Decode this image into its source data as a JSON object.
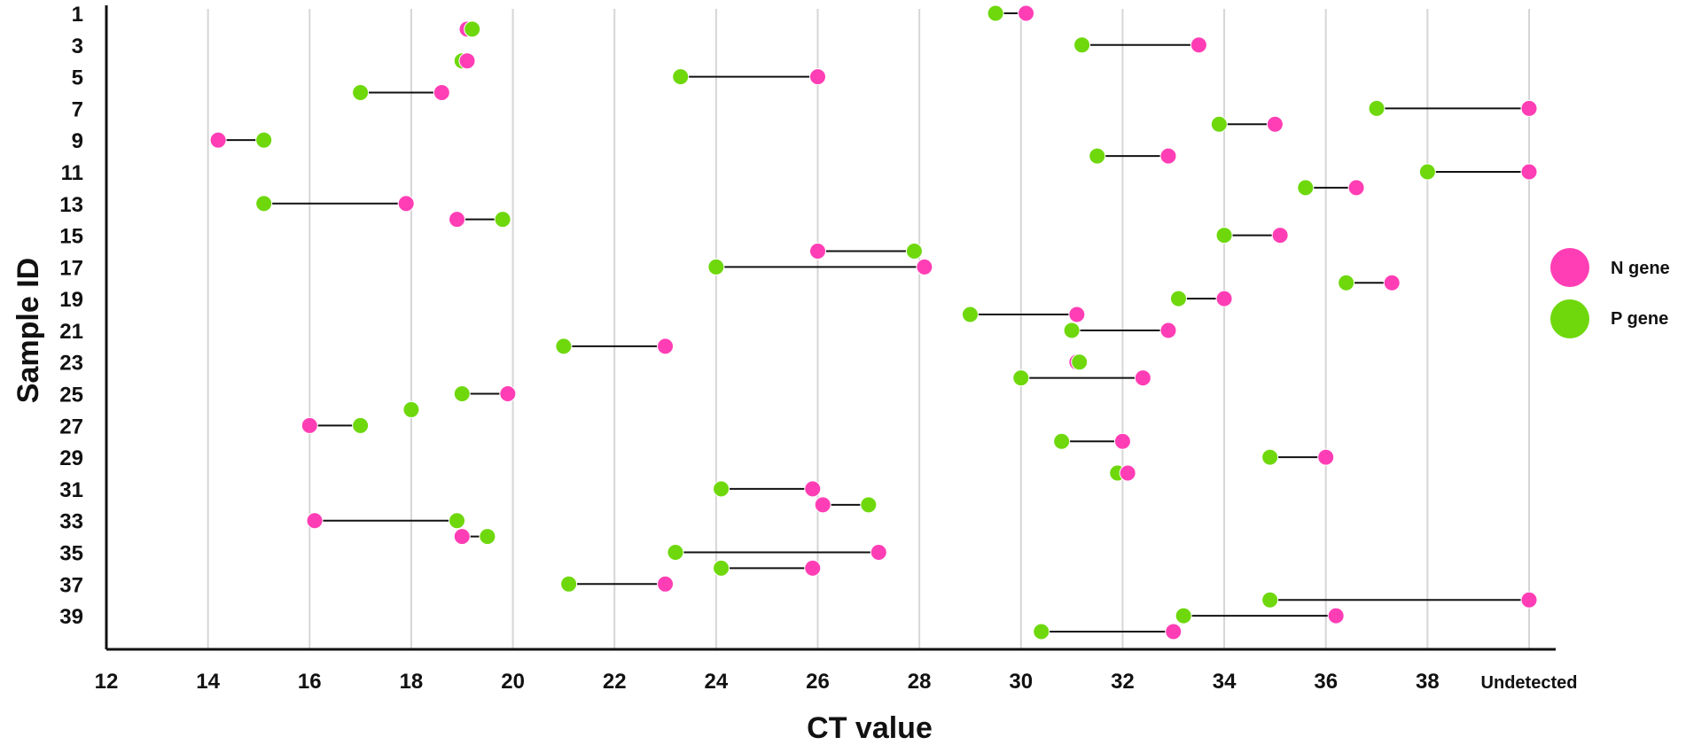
{
  "chart_data": {
    "type": "dumbbell",
    "title": "",
    "xlabel": "CT value",
    "ylabel": "Sample ID",
    "xlim": [
      12,
      40
    ],
    "x_ticks": [
      12,
      14,
      16,
      18,
      20,
      22,
      24,
      26,
      28,
      30,
      32,
      34,
      36,
      38
    ],
    "x_tick_labels": [
      "12",
      "14",
      "16",
      "18",
      "20",
      "22",
      "24",
      "26",
      "28",
      "30",
      "32",
      "34",
      "36",
      "38"
    ],
    "undetected_label": "Undetected",
    "undetected_value": 40,
    "y_ticks": [
      1,
      3,
      5,
      7,
      9,
      11,
      13,
      15,
      17,
      19,
      21,
      23,
      25,
      27,
      29,
      31,
      33,
      35,
      37,
      39
    ],
    "y_tick_labels": [
      "1",
      "3",
      "5",
      "7",
      "9",
      "11",
      "13",
      "15",
      "17",
      "19",
      "21",
      "23",
      "25",
      "27",
      "29",
      "31",
      "33",
      "35",
      "37",
      "39"
    ],
    "ylim": [
      0.4,
      40.6
    ],
    "grid": "vertical",
    "legend_position": "right",
    "series": [
      {
        "name": "N gene",
        "color": "#ff3eb5"
      },
      {
        "name": "P gene",
        "color": "#6ed80c"
      }
    ],
    "samples": [
      {
        "id": 1,
        "n": 30.1,
        "p": 29.5
      },
      {
        "id": 2,
        "n": 19.1,
        "p": 19.2
      },
      {
        "id": 3,
        "n": 33.5,
        "p": 31.2
      },
      {
        "id": 4,
        "n": 19.1,
        "p": 19.0
      },
      {
        "id": 5,
        "n": 26.0,
        "p": 23.3
      },
      {
        "id": 6,
        "n": 18.6,
        "p": 17.0
      },
      {
        "id": 7,
        "n": 40,
        "p": 37.0
      },
      {
        "id": 8,
        "n": 35.0,
        "p": 33.9
      },
      {
        "id": 9,
        "n": 14.2,
        "p": 15.1
      },
      {
        "id": 10,
        "n": 32.9,
        "p": 31.5
      },
      {
        "id": 11,
        "n": 40,
        "p": 38.0
      },
      {
        "id": 12,
        "n": 36.6,
        "p": 35.6
      },
      {
        "id": 13,
        "n": 17.9,
        "p": 15.1
      },
      {
        "id": 14,
        "n": 18.9,
        "p": 19.8
      },
      {
        "id": 15,
        "n": 35.1,
        "p": 34.0
      },
      {
        "id": 16,
        "n": 26.0,
        "p": 27.9
      },
      {
        "id": 17,
        "n": 28.1,
        "p": 24.0
      },
      {
        "id": 18,
        "n": 37.3,
        "p": 36.4
      },
      {
        "id": 19,
        "n": 34.0,
        "p": 33.1
      },
      {
        "id": 20,
        "n": 31.1,
        "p": 29.0
      },
      {
        "id": 21,
        "n": 32.9,
        "p": 31.0
      },
      {
        "id": 22,
        "n": 23.0,
        "p": 21.0
      },
      {
        "id": 23,
        "n": 31.1,
        "p": 31.15
      },
      {
        "id": 24,
        "n": 32.4,
        "p": 30.0
      },
      {
        "id": 25,
        "n": 19.9,
        "p": 19.0
      },
      {
        "id": 26,
        "n": 18.0,
        "p": 18.0
      },
      {
        "id": 27,
        "n": 16.0,
        "p": 17.0
      },
      {
        "id": 28,
        "n": 32.0,
        "p": 30.8
      },
      {
        "id": 29,
        "n": 36.0,
        "p": 34.9
      },
      {
        "id": 30,
        "n": 32.1,
        "p": 31.9
      },
      {
        "id": 31,
        "n": 25.9,
        "p": 24.1
      },
      {
        "id": 32,
        "n": 26.1,
        "p": 27.0
      },
      {
        "id": 33,
        "n": 16.1,
        "p": 18.9
      },
      {
        "id": 34,
        "n": 19.0,
        "p": 19.5
      },
      {
        "id": 35,
        "n": 27.2,
        "p": 23.2
      },
      {
        "id": 36,
        "n": 25.9,
        "p": 24.1
      },
      {
        "id": 37,
        "n": 23.0,
        "p": 21.1
      },
      {
        "id": 38,
        "n": 40,
        "p": 34.9
      },
      {
        "id": 39,
        "n": 36.2,
        "p": 33.2
      },
      {
        "id": 40,
        "n": 33.0,
        "p": 30.4
      }
    ]
  }
}
